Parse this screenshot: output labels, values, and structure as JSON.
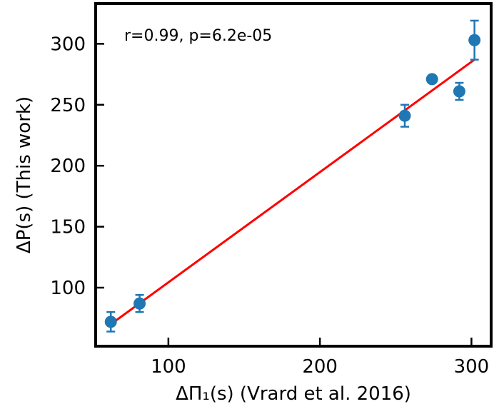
{
  "chart_data": {
    "type": "scatter",
    "title": "",
    "xlabel": "ΔΠ₁(s) (Vrard et al. 2016)",
    "ylabel": "ΔP(s) (This work)",
    "annotation": "r=0.99, p=6.2e-05",
    "xlim": [
      52,
      313
    ],
    "ylim": [
      52,
      333
    ],
    "x_ticks": [
      100,
      200,
      300
    ],
    "y_ticks": [
      100,
      150,
      200,
      250,
      300
    ],
    "grid": false,
    "legend": "none",
    "points": [
      {
        "x": 62,
        "y": 72,
        "yerr": 8
      },
      {
        "x": 81,
        "y": 87,
        "yerr": 7
      },
      {
        "x": 256,
        "y": 241,
        "yerr": 9
      },
      {
        "x": 274,
        "y": 271,
        "yerr": 0
      },
      {
        "x": 292,
        "y": 261,
        "yerr": 7
      },
      {
        "x": 302,
        "y": 303,
        "yerr": 16
      }
    ],
    "fit_line": {
      "x": [
        62,
        302
      ],
      "y": [
        70,
        287
      ]
    },
    "colors": {
      "points": "#1f77b4",
      "fit_line": "#ff0000",
      "frame": "#000000"
    }
  }
}
